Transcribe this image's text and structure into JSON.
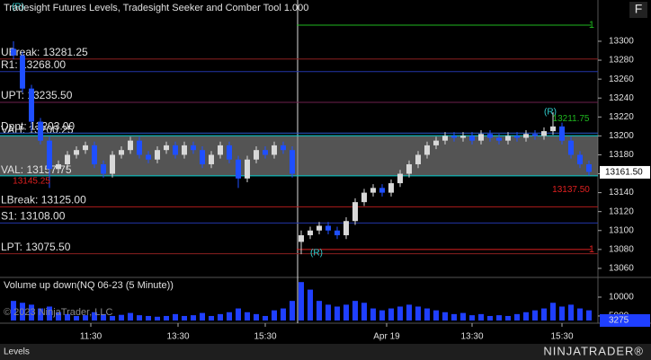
{
  "chart_data": {
    "type": "candlestick",
    "title": "Tradesight Futures Levels, Tradesight Seeker and Comber Tool 1.000",
    "open": [
      13292,
      13285,
      13250,
      13215,
      13195,
      13165,
      13170,
      13180,
      13185,
      13190,
      13170,
      13160,
      13180,
      13185,
      13195,
      13180,
      13175,
      13185,
      13190,
      13180,
      13190,
      13185,
      13170,
      13180,
      13190,
      13175,
      13155,
      13175,
      13185,
      13180,
      13190,
      13185,
      13088,
      13095,
      13100,
      13105,
      13100,
      13095,
      13110,
      13130,
      13140,
      13145,
      13140,
      13150,
      13160,
      13170,
      13180,
      13190,
      13195,
      13200,
      13198,
      13200,
      13195,
      13202,
      13198,
      13195,
      13200,
      13198,
      13202,
      13200,
      13205,
      13210,
      13195,
      13180,
      13170
    ],
    "high": [
      13300,
      13289,
      13254,
      13219,
      13199,
      13174,
      13184,
      13189,
      13194,
      13194,
      13174,
      13184,
      13189,
      13199,
      13199,
      13184,
      13189,
      13194,
      13194,
      13194,
      13194,
      13189,
      13184,
      13194,
      13194,
      13179,
      13179,
      13189,
      13189,
      13194,
      13194,
      13189,
      13100,
      13104,
      13109,
      13109,
      13104,
      13114,
      13134,
      13144,
      13149,
      13149,
      13154,
      13164,
      13174,
      13184,
      13194,
      13199,
      13204,
      13204,
      13204,
      13204,
      13206,
      13206,
      13202,
      13204,
      13204,
      13206,
      13206,
      13209,
      13225,
      13214,
      13199,
      13184,
      13174
    ],
    "low": [
      13281,
      13246,
      13205,
      13191,
      13145,
      13161,
      13166,
      13176,
      13181,
      13166,
      13156,
      13156,
      13176,
      13181,
      13176,
      13171,
      13171,
      13181,
      13176,
      13176,
      13181,
      13166,
      13166,
      13176,
      13171,
      13145,
      13151,
      13171,
      13176,
      13176,
      13181,
      13156,
      13075,
      13091,
      13096,
      13096,
      13091,
      13091,
      13106,
      13126,
      13136,
      13136,
      13136,
      13146,
      13156,
      13166,
      13176,
      13186,
      13191,
      13194,
      13194,
      13191,
      13191,
      13194,
      13191,
      13191,
      13194,
      13194,
      13196,
      13196,
      13201,
      13191,
      13176,
      13166,
      13158
    ],
    "close": [
      13285,
      13250,
      13215,
      13195,
      13165,
      13170,
      13180,
      13185,
      13190,
      13170,
      13160,
      13180,
      13185,
      13195,
      13180,
      13175,
      13185,
      13190,
      13180,
      13190,
      13185,
      13170,
      13180,
      13190,
      13175,
      13155,
      13175,
      13185,
      13180,
      13190,
      13185,
      13160,
      13095,
      13100,
      13105,
      13100,
      13095,
      13110,
      13130,
      13140,
      13145,
      13140,
      13150,
      13160,
      13170,
      13180,
      13190,
      13195,
      13200,
      13198,
      13200,
      13195,
      13202,
      13198,
      13195,
      13200,
      13198,
      13202,
      13200,
      13205,
      13210,
      13195,
      13180,
      13170,
      13162
    ],
    "up_color": "#d8d8d8",
    "down_color": "#1f4fff",
    "ylim": [
      13051.4,
      13343.6
    ],
    "yticks": [
      13060,
      13080,
      13100,
      13120,
      13140,
      13160,
      13180,
      13200,
      13220,
      13240,
      13260,
      13280,
      13300
    ],
    "xticks": [
      {
        "value": 8.6,
        "label": "11:30"
      },
      {
        "value": 18.3,
        "label": "13:30"
      },
      {
        "value": 28,
        "label": "15:30"
      },
      {
        "value": 41.5,
        "label": "Apr 19"
      },
      {
        "value": 51,
        "label": "13:30"
      },
      {
        "value": 61,
        "label": "15:30"
      }
    ],
    "levels": [
      {
        "label": "UBreak: 13281.25",
        "value": 13281.25,
        "color": "#8b2020"
      },
      {
        "label": "R1: 13268.00",
        "value": 13268.0,
        "color": "#2236a8"
      },
      {
        "label": "UPT: 13235.50",
        "value": 13235.5,
        "color": "#6e1f4e"
      },
      {
        "label": "Dpnt: 13203.00",
        "value": 13203.0,
        "color": "#2a5ad0"
      },
      {
        "label": "LBreak: 13125.00",
        "value": 13125.0,
        "color": "#b01c1c"
      },
      {
        "label": "S1: 13108.00",
        "value": 13108.0,
        "color": "#2236a8"
      },
      {
        "label": "LPT: 13075.50",
        "value": 13075.5,
        "color": "#8b2020"
      }
    ],
    "value_area": {
      "vah_label": "VAH: 13200.25",
      "vah": 13200.25,
      "val_label": "VAL: 13157.75",
      "val": 13157.75,
      "color": "#00d0d0"
    },
    "session_lines": [
      {
        "value": 13317,
        "label": "1",
        "color": "#1fb81f",
        "start": 32
      },
      {
        "value": 13080,
        "label": "1",
        "color": "#e02020",
        "start": 32
      }
    ],
    "annotations": [
      {
        "text": "(R)",
        "price": 13336,
        "x": 0.5,
        "color": "#30d0d0"
      },
      {
        "text": "(R)",
        "price": 13076,
        "x": 33.7,
        "color": "#30d0d0"
      },
      {
        "text": "(R)",
        "price": 13225,
        "x": 59.7,
        "color": "#30d0d0"
      },
      {
        "text": "13145.25",
        "price": 13152,
        "x": 2,
        "color": "#e02020"
      },
      {
        "text": "13137.50",
        "price": 13143,
        "x": 62,
        "color": "#e02020"
      },
      {
        "text": "13211.75",
        "price": 13218,
        "x": 62,
        "color": "#1fb81f"
      }
    ],
    "last_price": {
      "value": 13161.5,
      "label": "13161.50"
    },
    "volume": {
      "title": "Volume up down(NQ 06-23 (5 Minute))",
      "values": [
        9000,
        8500,
        8000,
        7000,
        7500,
        6000,
        5500,
        5000,
        5200,
        6000,
        5500,
        5000,
        5300,
        5800,
        5200,
        5000,
        4800,
        5000,
        5500,
        5000,
        5200,
        5800,
        5000,
        5500,
        6000,
        7000,
        6000,
        5500,
        5000,
        6500,
        7000,
        9000,
        14000,
        12000,
        9000,
        8000,
        7500,
        8000,
        9000,
        8500,
        7000,
        6500,
        7000,
        7500,
        8000,
        7500,
        7000,
        6500,
        6000,
        5500,
        5800,
        5200,
        5500,
        5000,
        5200,
        5000,
        5500,
        6000,
        6500,
        7000,
        8500,
        7500,
        8000,
        7000,
        6500
      ],
      "color": "#1f3fff",
      "ylim": [
        3800,
        15000
      ],
      "yticks": [
        5000,
        10000
      ],
      "last": 3275
    }
  },
  "copyright": "© 2023 NinjaTrader, LLC",
  "tab": "Levels",
  "logo": "NINJATRADER®",
  "button": "F"
}
